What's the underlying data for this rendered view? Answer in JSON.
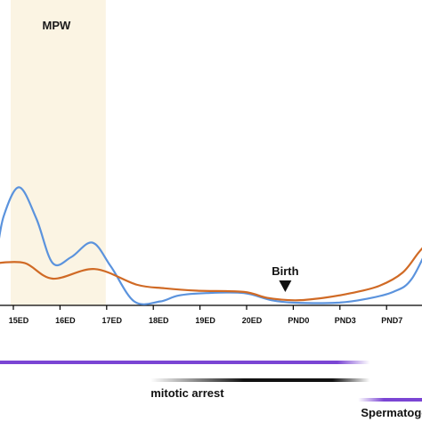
{
  "chart_data": {
    "type": "line",
    "categories": [
      "15ED",
      "16ED",
      "17ED",
      "18ED",
      "19ED",
      "20ED",
      "PND0",
      "PND3",
      "PND7"
    ],
    "shaded_region": {
      "label": "MPW",
      "from": "15ED",
      "to": "17ED",
      "color": "#fbf4e3"
    },
    "event_marker": {
      "label": "Birth",
      "at": "PND0"
    },
    "series": [
      {
        "color": "#5b93dd",
        "points": [
          [
            -0.3,
            0.4
          ],
          [
            -0.15,
            0.72
          ],
          [
            0.18,
            0.96
          ],
          [
            0.55,
            0.7
          ],
          [
            0.9,
            0.33
          ],
          [
            1.3,
            0.38
          ],
          [
            1.75,
            0.5
          ],
          [
            2.15,
            0.3
          ],
          [
            2.65,
            0.01
          ],
          [
            3.2,
            0.01
          ],
          [
            3.6,
            0.06
          ],
          [
            4.2,
            0.08
          ],
          [
            5.0,
            0.08
          ],
          [
            5.6,
            0.02
          ],
          [
            6.1,
            0.0
          ],
          [
            7.0,
            0.0
          ],
          [
            7.6,
            0.03
          ],
          [
            8.2,
            0.09
          ],
          [
            8.6,
            0.2
          ],
          [
            9.05,
            0.55
          ]
        ]
      },
      {
        "color": "#d06a25",
        "points": [
          [
            -0.3,
            0.33
          ],
          [
            0.3,
            0.33
          ],
          [
            0.9,
            0.2
          ],
          [
            1.8,
            0.28
          ],
          [
            2.7,
            0.15
          ],
          [
            3.3,
            0.12
          ],
          [
            4.0,
            0.1
          ],
          [
            5.0,
            0.09
          ],
          [
            5.5,
            0.04
          ],
          [
            6.1,
            0.02
          ],
          [
            6.7,
            0.04
          ],
          [
            7.3,
            0.08
          ],
          [
            7.9,
            0.14
          ],
          [
            8.4,
            0.25
          ],
          [
            8.75,
            0.42
          ],
          [
            9.05,
            0.55
          ]
        ]
      }
    ],
    "ylim": [
      0,
      1
    ]
  },
  "phases": [
    {
      "label": "",
      "color": "#7b45d4",
      "from": -0.3,
      "to": 7.7,
      "fade_from": 7.0,
      "row": 1
    },
    {
      "label": "mitotic arrest",
      "color": "#111111",
      "from": 3.0,
      "to": 7.7,
      "fade_in_to": 5.0,
      "fade_from": 6.9,
      "row": 2
    },
    {
      "label": "Spermatogo",
      "color": "#7b45d4",
      "from": 7.45,
      "to": 9.1,
      "fade_in_to": 8.0,
      "row": 3
    }
  ]
}
